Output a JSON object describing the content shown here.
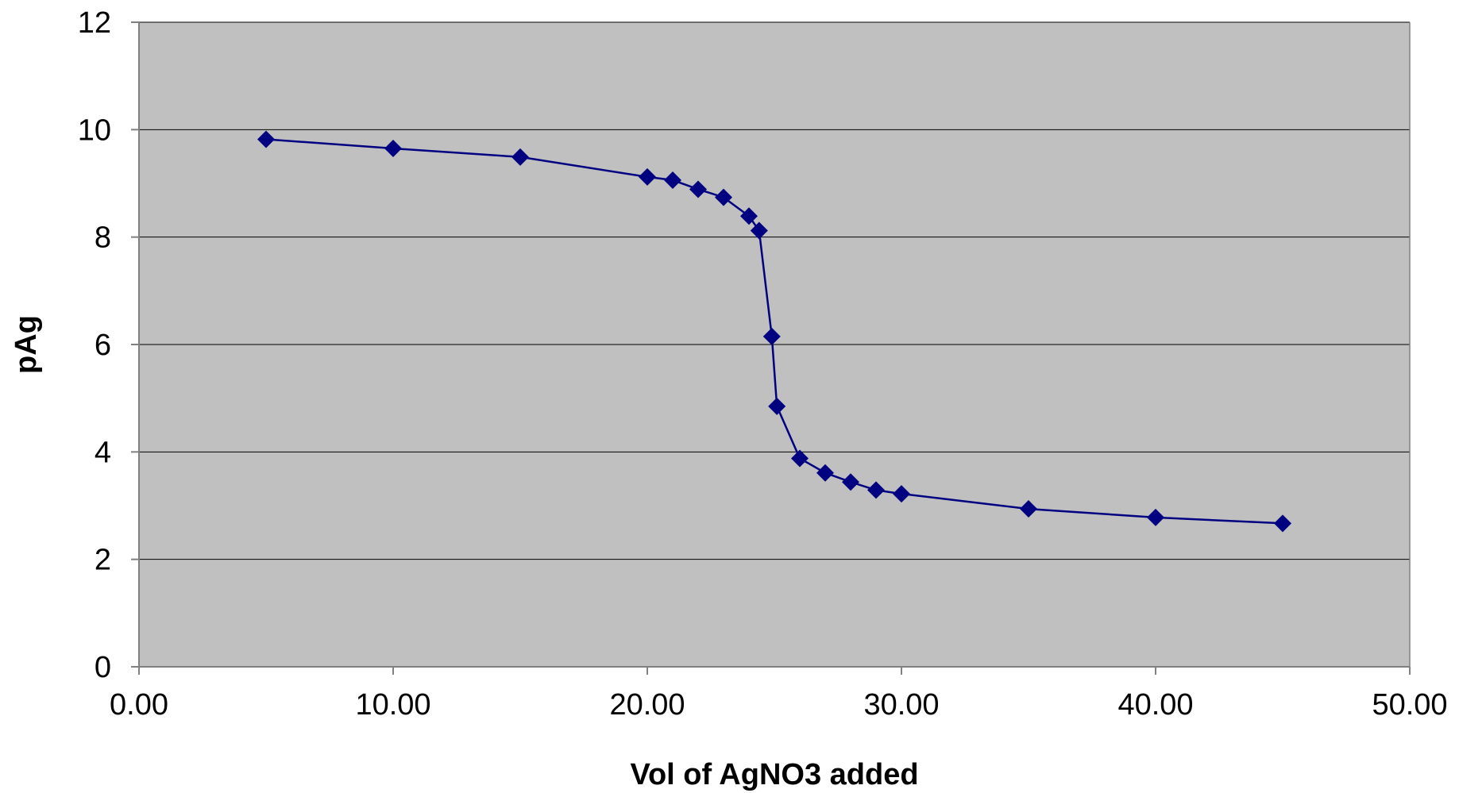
{
  "chart_data": {
    "type": "scatter",
    "title": "",
    "xlabel": "Vol of AgNO3 added",
    "ylabel": "pAg",
    "xlim": [
      0,
      50
    ],
    "ylim": [
      0,
      12
    ],
    "x_ticks": [
      "0.00",
      "10.00",
      "20.00",
      "30.00",
      "40.00",
      "50.00"
    ],
    "y_ticks": [
      "0",
      "2",
      "4",
      "6",
      "8",
      "10",
      "12"
    ],
    "grid": "horizontal",
    "legend": "none",
    "series": [
      {
        "x": [
          5,
          10,
          15,
          20,
          21,
          22,
          23,
          24,
          24.4,
          24.9,
          25.1,
          26,
          27,
          28,
          29,
          30,
          35,
          40,
          45
        ],
        "y": [
          9.82,
          9.65,
          9.49,
          9.12,
          9.06,
          8.89,
          8.74,
          8.39,
          8.12,
          6.15,
          4.85,
          3.88,
          3.61,
          3.44,
          3.29,
          3.22,
          2.94,
          2.78,
          2.67
        ]
      }
    ],
    "colors": {
      "plot_background": "#c0c0c0",
      "line": "#000080",
      "marker": "#000080",
      "gridline": "#000000"
    }
  }
}
